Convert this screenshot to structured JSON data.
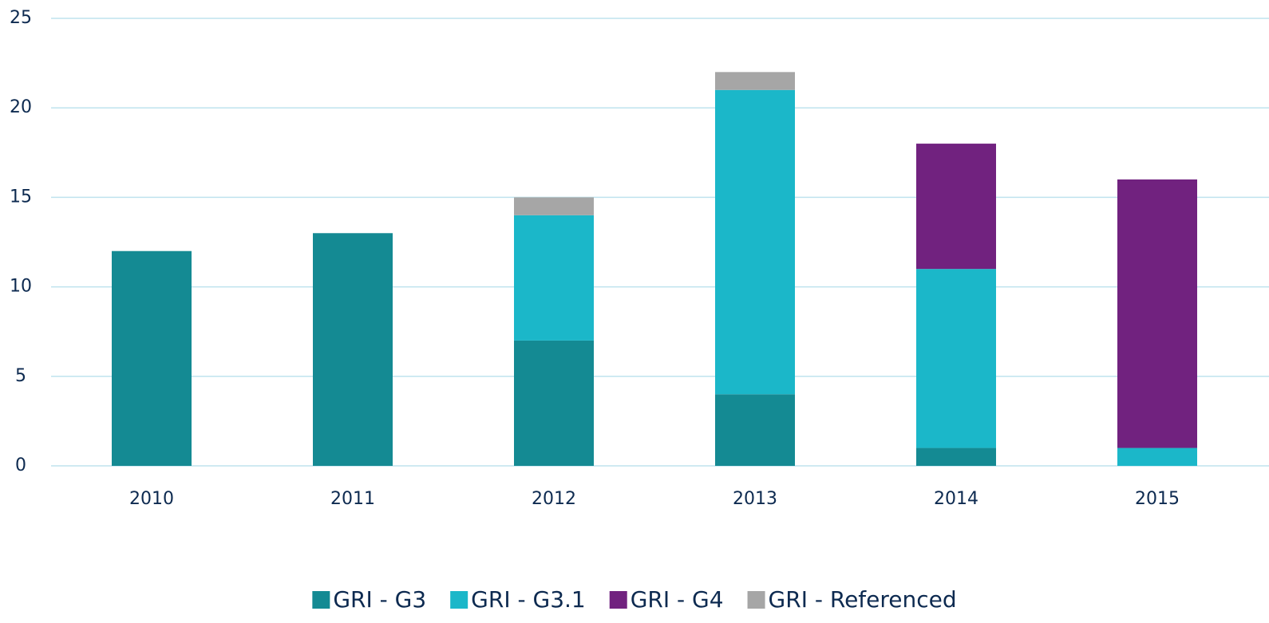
{
  "chart_data": {
    "type": "bar",
    "stacked": true,
    "categories": [
      "2010",
      "2011",
      "2012",
      "2013",
      "2014",
      "2015"
    ],
    "series": [
      {
        "name": "GRI - G3",
        "color": "#148a93",
        "values": [
          12,
          13,
          7,
          4,
          1,
          0
        ]
      },
      {
        "name": "GRI - G3.1",
        "color": "#1bb7c9",
        "values": [
          0,
          0,
          7,
          17,
          10,
          1
        ]
      },
      {
        "name": "GRI - G4",
        "color": "#71227f",
        "values": [
          0,
          0,
          0,
          0,
          7,
          15
        ]
      },
      {
        "name": "GRI - Referenced",
        "color": "#a6a6a6",
        "values": [
          0,
          0,
          1,
          1,
          0,
          0
        ]
      }
    ],
    "ylim": [
      0,
      25
    ],
    "yticks": [
      0,
      5,
      10,
      15,
      20,
      25
    ],
    "grid": true,
    "legend": "bottom"
  }
}
